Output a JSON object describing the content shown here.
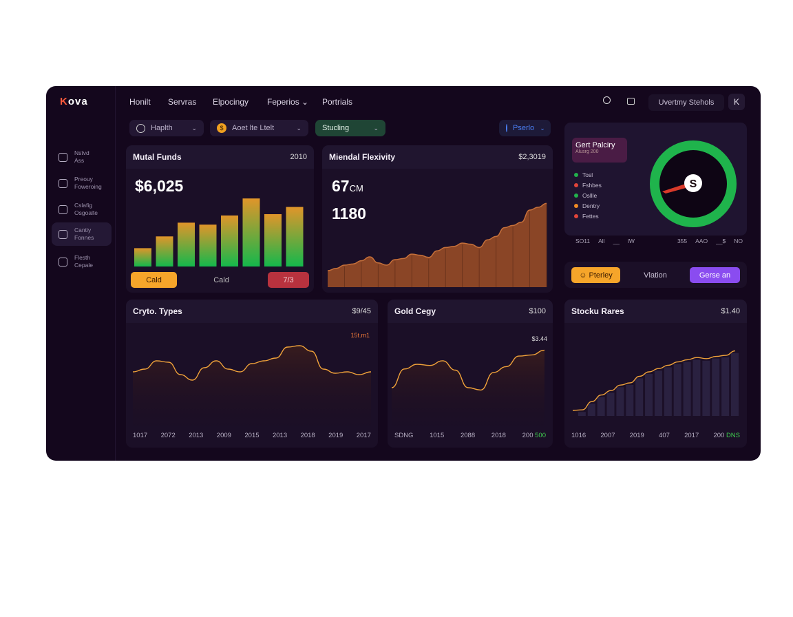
{
  "brand": {
    "logo_k": "K",
    "logo_rest": "ova"
  },
  "nav": [
    "Honilt",
    "Servras",
    "Elpocingy",
    "Feperios",
    "Portrials"
  ],
  "header": {
    "user_label": "Uvertmy Stehols",
    "avatar": "K"
  },
  "filters": [
    {
      "label": "Haplth",
      "icon": "grid-coin-icon"
    },
    {
      "label": "Aoet lte Ltelt",
      "icon": "dollar-coin-icon"
    },
    {
      "label": "Stucling"
    },
    {
      "label": "Pserlo",
      "icon": "location-icon"
    }
  ],
  "sidebar": [
    {
      "l1": "Nstvd",
      "l2": "Ass"
    },
    {
      "l1": "Preouy",
      "l2": "Foweroing"
    },
    {
      "l1": "Cslafig",
      "l2": "Osgoalte"
    },
    {
      "l1": "Cantiy",
      "l2": "Fonnes"
    },
    {
      "l1": "Flesth",
      "l2": "Cepale"
    }
  ],
  "mutual": {
    "title": "Mutal Funds",
    "right": "2010",
    "value": "$6,025",
    "btn1": "Cald",
    "btn2": "Cald",
    "btn3": "7/3",
    "values": [
      28,
      46,
      67,
      64,
      78,
      104,
      80,
      91
    ]
  },
  "mental": {
    "title": "Miendal Flexivity",
    "right": "$2,3019",
    "v1": "67",
    "v1unit": "CM",
    "v2": "1180",
    "values": [
      30,
      34,
      40,
      42,
      48,
      55,
      44,
      40,
      50,
      52,
      60,
      58,
      54,
      66,
      72,
      74,
      80,
      78,
      72,
      86,
      92,
      108,
      112,
      118,
      140,
      145,
      152
    ]
  },
  "gauge": {
    "title": "Gert Palciry",
    "subtitle": "Alusrg 200",
    "legend": [
      {
        "label": "Tosl",
        "color": "#22b14c"
      },
      {
        "label": "Fshbes",
        "color": "#e0443a"
      },
      {
        "label": "Osllle",
        "color": "#22b14c"
      },
      {
        "label": "Dentry",
        "color": "#f08a24"
      },
      {
        "label": "Fettes",
        "color": "#e0443a"
      }
    ],
    "center": "S",
    "axis": [
      "SO11",
      "All",
      "__",
      "lW",
      "355",
      "AAO",
      "__$",
      "NO"
    ],
    "ring_color": "#1fb44c"
  },
  "actions": {
    "a": "Pterley",
    "b": "Vlation",
    "c": "Gerse an"
  },
  "crypto": {
    "title": "Cryto. Types",
    "right": "$9/45",
    "annotation": "15t.m1",
    "ticks": [
      "1017",
      "2072",
      "2013",
      "2009",
      "2015",
      "2013",
      "2018",
      "2019",
      "2017"
    ],
    "values": [
      62,
      66,
      78,
      76,
      58,
      50,
      68,
      78,
      66,
      62,
      74,
      78,
      82,
      98,
      100,
      92,
      66,
      60,
      62,
      58,
      62
    ]
  },
  "gold": {
    "title": "Gold Cegy",
    "right": "$100",
    "annotation": "$3.44",
    "ticks": [
      "SDNG",
      "1015",
      "2088",
      "2018",
      "200"
    ],
    "tick_green": "500",
    "values": [
      40,
      72,
      80,
      78,
      86,
      70,
      40,
      36,
      66,
      76,
      94,
      96,
      104
    ]
  },
  "stocks": {
    "title": "Stocku Rares",
    "right": "$1.40",
    "ticks": [
      "1016",
      "2007",
      "2019",
      "407",
      "2017",
      "200"
    ],
    "tick_green": "DNS",
    "values": [
      10,
      11,
      26,
      38,
      46,
      56,
      60,
      72,
      80,
      86,
      92,
      98,
      102,
      106,
      104,
      108,
      110,
      118
    ]
  }
}
